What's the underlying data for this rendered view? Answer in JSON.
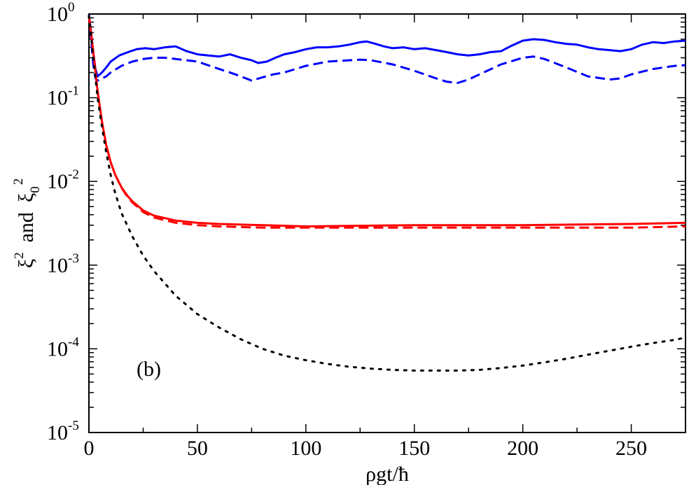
{
  "chart_data": {
    "type": "line",
    "title": "",
    "xlabel": "ρgt/ħ",
    "ylabel": {
      "a": "ξ",
      "a_sup": "2",
      "mid": "and",
      "b": "ξ",
      "b_sub": "0",
      "b_sup": "2"
    },
    "yscale": "log",
    "xlim": [
      0,
      275
    ],
    "ylim": [
      1e-05,
      1
    ],
    "x_ticks": [
      {
        "value": 0,
        "label": "0"
      },
      {
        "value": 50,
        "label": "50"
      },
      {
        "value": 100,
        "label": "100"
      },
      {
        "value": 150,
        "label": "150"
      },
      {
        "value": 200,
        "label": "200"
      },
      {
        "value": 250,
        "label": "250"
      }
    ],
    "y_ticks": [
      {
        "value": 1e-05,
        "base": "10",
        "exp": "-5"
      },
      {
        "value": 0.0001,
        "base": "10",
        "exp": "-4"
      },
      {
        "value": 0.001,
        "base": "10",
        "exp": "-3"
      },
      {
        "value": 0.01,
        "base": "10",
        "exp": "-2"
      },
      {
        "value": 0.1,
        "base": "10",
        "exp": "-1"
      },
      {
        "value": 1,
        "base": "10",
        "exp": "0"
      }
    ],
    "annotation": "(b)",
    "series": [
      {
        "name": "blue-solid",
        "color": "#0000ff",
        "style": "solid",
        "x": [
          0,
          1,
          2,
          3,
          4,
          6,
          8,
          10,
          14,
          18,
          22,
          26,
          30,
          35,
          40,
          45,
          50,
          55,
          60,
          65,
          70,
          75,
          78,
          82,
          86,
          90,
          95,
          100,
          105,
          110,
          115,
          120,
          125,
          128,
          132,
          136,
          140,
          145,
          150,
          155,
          160,
          165,
          170,
          175,
          180,
          185,
          190,
          195,
          200,
          205,
          210,
          215,
          220,
          225,
          230,
          235,
          240,
          245,
          250,
          255,
          260,
          265,
          270,
          275
        ],
        "y": [
          0.98,
          0.6,
          0.35,
          0.22,
          0.18,
          0.2,
          0.23,
          0.27,
          0.32,
          0.35,
          0.38,
          0.39,
          0.38,
          0.4,
          0.41,
          0.36,
          0.33,
          0.32,
          0.31,
          0.33,
          0.3,
          0.28,
          0.26,
          0.27,
          0.3,
          0.33,
          0.35,
          0.38,
          0.4,
          0.4,
          0.41,
          0.43,
          0.46,
          0.47,
          0.44,
          0.41,
          0.39,
          0.4,
          0.38,
          0.39,
          0.37,
          0.35,
          0.33,
          0.32,
          0.33,
          0.35,
          0.36,
          0.42,
          0.48,
          0.5,
          0.49,
          0.46,
          0.44,
          0.43,
          0.4,
          0.38,
          0.37,
          0.36,
          0.38,
          0.43,
          0.46,
          0.45,
          0.47,
          0.48
        ]
      },
      {
        "name": "blue-dashed",
        "color": "#0000ff",
        "style": "dashed",
        "x": [
          0,
          1,
          2,
          3,
          4,
          5,
          6,
          8,
          10,
          15,
          20,
          25,
          30,
          35,
          40,
          50,
          60,
          65,
          70,
          75,
          80,
          85,
          90,
          100,
          110,
          120,
          125,
          130,
          140,
          150,
          160,
          165,
          170,
          175,
          180,
          190,
          200,
          205,
          210,
          220,
          230,
          240,
          245,
          250,
          260,
          270,
          275
        ],
        "y": [
          0.98,
          0.5,
          0.25,
          0.17,
          0.16,
          0.165,
          0.17,
          0.18,
          0.2,
          0.24,
          0.27,
          0.29,
          0.3,
          0.3,
          0.29,
          0.27,
          0.22,
          0.2,
          0.18,
          0.16,
          0.175,
          0.19,
          0.2,
          0.24,
          0.27,
          0.28,
          0.285,
          0.28,
          0.25,
          0.21,
          0.17,
          0.155,
          0.15,
          0.165,
          0.19,
          0.25,
          0.3,
          0.31,
          0.29,
          0.23,
          0.18,
          0.165,
          0.17,
          0.19,
          0.22,
          0.24,
          0.245
        ]
      },
      {
        "name": "red-solid",
        "color": "#ff0000",
        "style": "solid",
        "x": [
          0,
          2,
          4,
          6,
          8,
          10,
          12,
          15,
          18,
          20,
          25,
          30,
          40,
          50,
          60,
          80,
          100,
          150,
          200,
          250,
          275
        ],
        "y": [
          0.95,
          0.35,
          0.12,
          0.052,
          0.027,
          0.017,
          0.0122,
          0.0085,
          0.0066,
          0.0058,
          0.0045,
          0.0039,
          0.0034,
          0.0032,
          0.0031,
          0.003,
          0.0029,
          0.003,
          0.003,
          0.0031,
          0.0032
        ]
      },
      {
        "name": "red-dashed",
        "color": "#ff0000",
        "style": "dashed",
        "x": [
          0,
          2,
          4,
          6,
          8,
          10,
          12,
          15,
          18,
          20,
          25,
          30,
          40,
          50,
          60,
          80,
          100,
          150,
          200,
          250,
          275
        ],
        "y": [
          0.95,
          0.35,
          0.12,
          0.052,
          0.027,
          0.017,
          0.0122,
          0.0084,
          0.0064,
          0.0056,
          0.0043,
          0.0037,
          0.0032,
          0.003,
          0.0029,
          0.0028,
          0.0028,
          0.0028,
          0.0028,
          0.0028,
          0.0029
        ]
      },
      {
        "name": "black-dotted",
        "color": "#000000",
        "style": "dotted",
        "x": [
          0,
          2,
          4,
          6,
          8,
          10,
          12,
          15,
          20,
          25,
          30,
          40,
          50,
          60,
          70,
          80,
          90,
          100,
          110,
          120,
          130,
          140,
          150,
          160,
          170,
          180,
          190,
          200,
          210,
          220,
          230,
          240,
          250,
          260,
          270,
          275
        ],
        "y": [
          0.95,
          0.3,
          0.1,
          0.045,
          0.022,
          0.012,
          0.0074,
          0.0042,
          0.0022,
          0.0013,
          0.00085,
          0.00043,
          0.00026,
          0.00018,
          0.00013,
          0.0001,
          8.3e-05,
          7.3e-05,
          6.6e-05,
          6.1e-05,
          5.8e-05,
          5.6e-05,
          5.5e-05,
          5.5e-05,
          5.5e-05,
          5.6e-05,
          5.9e-05,
          6.3e-05,
          6.9e-05,
          7.6e-05,
          8.5e-05,
          9.5e-05,
          0.000106,
          0.000117,
          0.000128,
          0.000136
        ]
      }
    ]
  }
}
